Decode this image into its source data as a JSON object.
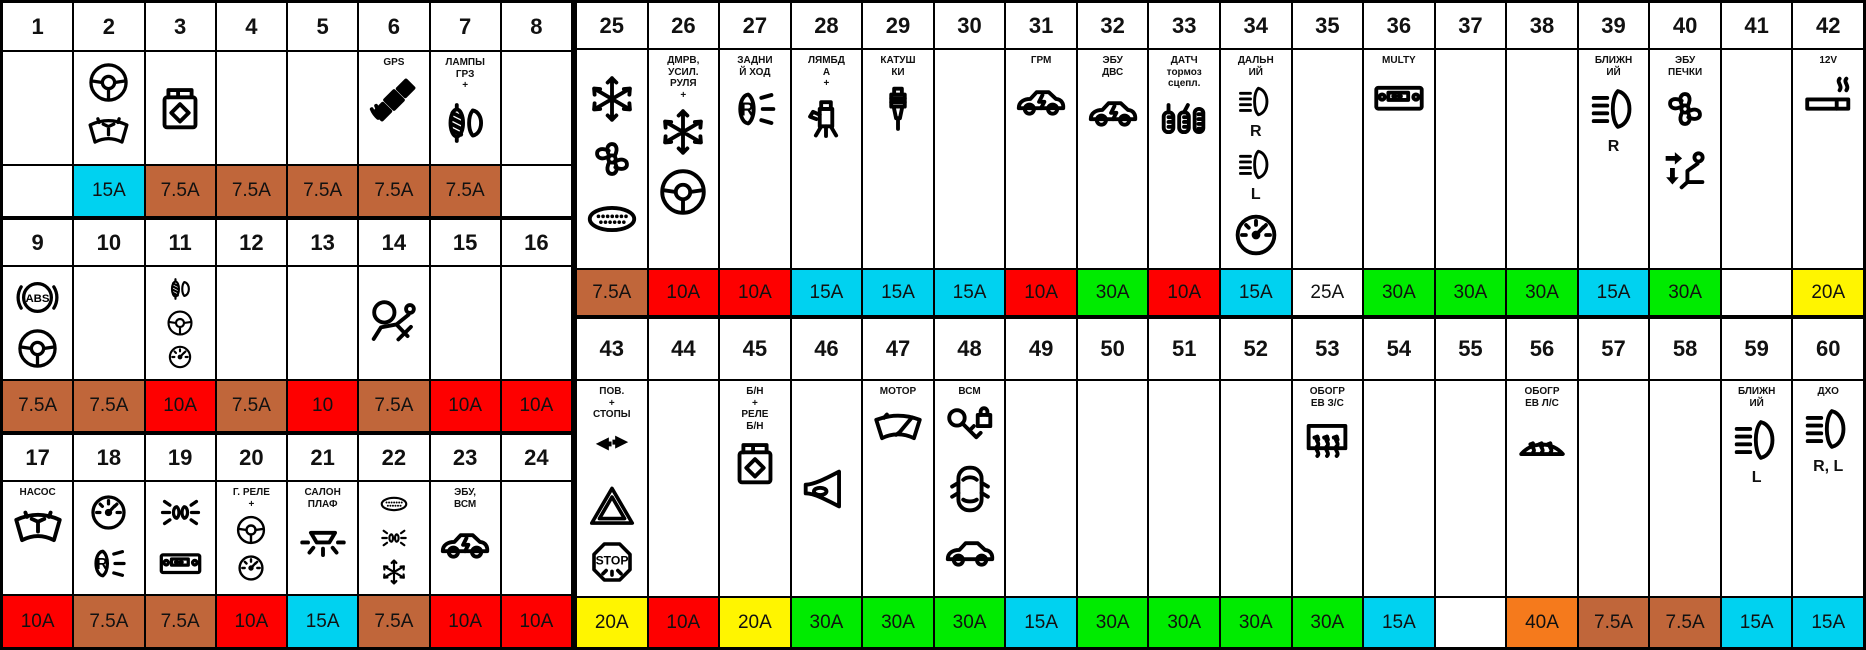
{
  "title": "Fuse box layout diagram",
  "palette": {
    "brown": "#C0663A",
    "red": "#FE0000",
    "cyan": "#00D2F0",
    "green": "#00EB00",
    "yellow": "#FFF500",
    "orange": "#F57A1C",
    "white": "#FFFFFF"
  },
  "blocks": [
    {
      "id": "left",
      "cols": 8,
      "groups": [
        {
          "cells": [
            {
              "n": "1"
            },
            {
              "n": "2",
              "icons": [
                {
                  "i": "steering"
                },
                {
                  "i": "washer"
                }
              ],
              "amp": "15A",
              "c": "cyan"
            },
            {
              "n": "3",
              "icons": [
                {
                  "i": "jerrycan"
                }
              ],
              "amp": "7.5A",
              "c": "brown"
            },
            {
              "n": "4",
              "amp": "7.5A",
              "c": "brown"
            },
            {
              "n": "5",
              "amp": "7.5A",
              "c": "brown"
            },
            {
              "n": "6",
              "l": "GPS",
              "icons": [
                {
                  "i": "satellite"
                }
              ],
              "amp": "7.5A",
              "c": "brown"
            },
            {
              "n": "7",
              "l": "ЛАМПЫ\nГРЗ\n+",
              "icons": [
                {
                  "i": "platelamp"
                }
              ],
              "amp": "7.5A",
              "c": "brown"
            },
            {
              "n": "8"
            }
          ]
        },
        {
          "cells": [
            {
              "n": "9",
              "icons": [
                {
                  "i": "abs"
                },
                {
                  "i": "steering"
                }
              ],
              "amp": "7.5A",
              "c": "brown"
            },
            {
              "n": "10",
              "amp": "7.5A",
              "c": "brown"
            },
            {
              "n": "11",
              "icons": [
                {
                  "i": "platelamp"
                },
                {
                  "i": "steering"
                },
                {
                  "i": "gauge"
                }
              ],
              "amp": "10A",
              "c": "red"
            },
            {
              "n": "12",
              "amp": "7.5A",
              "c": "brown"
            },
            {
              "n": "13",
              "amp": "10",
              "c": "red"
            },
            {
              "n": "14",
              "icons": [
                {
                  "i": "airbag"
                }
              ],
              "amp": "7.5A",
              "c": "brown"
            },
            {
              "n": "15",
              "amp": "10A",
              "c": "red"
            },
            {
              "n": "16",
              "amp": "10A",
              "c": "red"
            }
          ]
        },
        {
          "cells": [
            {
              "n": "17",
              "l": "НАСОС",
              "icons": [
                {
                  "i": "washer"
                }
              ],
              "amp": "10A",
              "c": "red"
            },
            {
              "n": "18",
              "icons": [
                {
                  "i": "gauge"
                },
                {
                  "i": "reverse"
                }
              ],
              "amp": "7.5A",
              "c": "brown"
            },
            {
              "n": "19",
              "icons": [
                {
                  "i": "markerlights"
                },
                {
                  "i": "radio"
                }
              ],
              "amp": "7.5A",
              "c": "brown"
            },
            {
              "n": "20",
              "l": "Г. РЕЛЕ\n+",
              "icons": [
                {
                  "i": "steering"
                },
                {
                  "i": "gauge"
                }
              ],
              "amp": "10A",
              "c": "red"
            },
            {
              "n": "21",
              "l": "САЛОН\nПЛАФ",
              "icons": [
                {
                  "i": "domelight"
                }
              ],
              "amp": "15A",
              "c": "cyan"
            },
            {
              "n": "22",
              "icons": [
                {
                  "i": "connector"
                },
                {
                  "i": "markerlights"
                },
                {
                  "i": "snowflake"
                }
              ],
              "amp": "7.5A",
              "c": "brown"
            },
            {
              "n": "23",
              "l": "ЭБУ,\nВСМ",
              "icons": [
                {
                  "i": "hybridcar"
                }
              ],
              "amp": "10A",
              "c": "red"
            },
            {
              "n": "24",
              "amp": "10A",
              "c": "red"
            }
          ]
        }
      ]
    },
    {
      "id": "right",
      "cols": 18,
      "groups": [
        {
          "cells": [
            {
              "n": "25",
              "icons": [
                {
                  "i": "snowflake"
                },
                {
                  "i": "fan"
                },
                {
                  "i": "connector"
                }
              ],
              "amp": "7.5A",
              "c": "brown"
            },
            {
              "n": "26",
              "l": "ДМРВ,\nУСИЛ.\nРУЛЯ\n+",
              "icons": [
                {
                  "i": "snowflake"
                },
                {
                  "i": "steering"
                }
              ],
              "amp": "10A",
              "c": "red"
            },
            {
              "n": "27",
              "l": "ЗАДНИ\nЙ ХОД",
              "icons": [
                {
                  "i": "reverse"
                }
              ],
              "amp": "10A",
              "c": "red"
            },
            {
              "n": "28",
              "l": "ЛЯМБД\nА\n+",
              "icons": [
                {
                  "i": "injector"
                }
              ],
              "amp": "15A",
              "c": "cyan"
            },
            {
              "n": "29",
              "l": "КАТУШ\nКИ",
              "icons": [
                {
                  "i": "sparkplug"
                }
              ],
              "amp": "15A",
              "c": "cyan"
            },
            {
              "n": "30",
              "amp": "15A",
              "c": "cyan"
            },
            {
              "n": "31",
              "l": "ГРМ",
              "icons": [
                {
                  "i": "hybridcar"
                }
              ],
              "amp": "10A",
              "c": "red"
            },
            {
              "n": "32",
              "l": "ЭБУ\nДВС",
              "icons": [
                {
                  "i": "hybridcar"
                }
              ],
              "amp": "30A",
              "c": "green"
            },
            {
              "n": "33",
              "l": "ДАТЧ\nтормоз\nсцепл.",
              "icons": [
                {
                  "i": "pedals"
                }
              ],
              "amp": "10A",
              "c": "red"
            },
            {
              "n": "34",
              "l": "ДАЛЬН\nИЙ",
              "icons": [
                {
                  "i": "headlight",
                  "t": "R"
                },
                {
                  "i": "headlight",
                  "t": "L"
                },
                {
                  "i": "gauge"
                }
              ],
              "amp": "15A",
              "c": "cyan"
            },
            {
              "n": "35",
              "amp": "25A",
              "c": "white"
            },
            {
              "n": "36",
              "l": "MULTY",
              "icons": [
                {
                  "i": "radio"
                }
              ],
              "amp": "30A",
              "c": "green"
            },
            {
              "n": "37",
              "amp": "30A",
              "c": "green"
            },
            {
              "n": "38",
              "amp": "30A",
              "c": "green"
            },
            {
              "n": "39",
              "l": "БЛИЖН\nИЙ",
              "icons": [
                {
                  "i": "headlight",
                  "t": "R"
                }
              ],
              "amp": "15A",
              "c": "cyan"
            },
            {
              "n": "40",
              "l": "ЭБУ\nПЕЧКИ",
              "icons": [
                {
                  "i": "fan"
                },
                {
                  "i": "seatvent"
                }
              ],
              "amp": "30A",
              "c": "green"
            },
            {
              "n": "41"
            },
            {
              "n": "42",
              "l": "12V",
              "icons": [
                {
                  "i": "lighter"
                }
              ],
              "amp": "20A",
              "c": "yellow"
            }
          ]
        },
        {
          "cells": [
            {
              "n": "43",
              "l": "ПОВ.\n+\nСТОПЫ",
              "icons": [
                {
                  "i": "turnarrows"
                },
                {
                  "i": "warntriangle"
                },
                {
                  "i": "stopsign"
                }
              ],
              "amp": "20A",
              "c": "yellow"
            },
            {
              "n": "44",
              "amp": "10A",
              "c": "red"
            },
            {
              "n": "45",
              "l": "Б/Н\n+\nРЕЛЕ\nБ/Н",
              "icons": [
                {
                  "i": "jerrycan"
                }
              ],
              "amp": "20A",
              "c": "yellow"
            },
            {
              "n": "46",
              "icons": [
                {
                  "i": "horn"
                }
              ],
              "amp": "30A",
              "c": "green"
            },
            {
              "n": "47",
              "l": "МОТОР",
              "icons": [
                {
                  "i": "wiper"
                }
              ],
              "amp": "30A",
              "c": "green"
            },
            {
              "n": "48",
              "l": "ВСМ",
              "icons": [
                {
                  "i": "keylock"
                },
                {
                  "i": "cartop"
                },
                {
                  "i": "carside"
                }
              ],
              "amp": "30A",
              "c": "green"
            },
            {
              "n": "49",
              "amp": "15A",
              "c": "cyan"
            },
            {
              "n": "50",
              "amp": "30A",
              "c": "green"
            },
            {
              "n": "51",
              "amp": "30A",
              "c": "green"
            },
            {
              "n": "52",
              "amp": "30A",
              "c": "green"
            },
            {
              "n": "53",
              "l": "ОБОГР\nЕВ З/С",
              "icons": [
                {
                  "i": "defrostrear"
                }
              ],
              "amp": "30A",
              "c": "green"
            },
            {
              "n": "54",
              "amp": "15A",
              "c": "cyan"
            },
            {
              "n": "55"
            },
            {
              "n": "56",
              "l": "ОБОГР\nЕВ Л/С",
              "icons": [
                {
                  "i": "defrostfront"
                }
              ],
              "amp": "40A",
              "c": "orange"
            },
            {
              "n": "57",
              "amp": "7.5A",
              "c": "brown"
            },
            {
              "n": "58",
              "amp": "7.5A",
              "c": "brown"
            },
            {
              "n": "59",
              "l": "БЛИЖН\nИЙ",
              "icons": [
                {
                  "i": "headlight",
                  "t": "L"
                }
              ],
              "amp": "15A",
              "c": "cyan"
            },
            {
              "n": "60",
              "l": "ДХО",
              "icons": [
                {
                  "i": "headlight",
                  "t": "R, L"
                }
              ],
              "amp": "15A",
              "c": "cyan"
            }
          ]
        }
      ]
    }
  ]
}
